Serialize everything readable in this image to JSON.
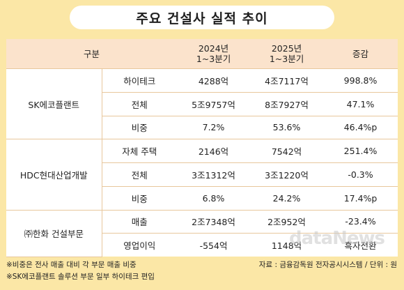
{
  "title": "주요 건설사 실적 추이",
  "table": {
    "headers": {
      "category": "구분",
      "col1_line1": "2024년",
      "col1_line2": "1~3분기",
      "col2_line1": "2025년",
      "col2_line2": "1~3분기",
      "col3": "증감"
    },
    "groups": [
      {
        "company": "SK에코플랜트",
        "rows": [
          {
            "item": "하이테크",
            "y2024": "4288억",
            "y2025": "4조7117억",
            "change": "998.8%"
          },
          {
            "item": "전체",
            "y2024": "5조9757억",
            "y2025": "8조7927억",
            "change": "47.1%"
          },
          {
            "item": "비중",
            "y2024": "7.2%",
            "y2025": "53.6%",
            "change": "46.4%p"
          }
        ]
      },
      {
        "company": "HDC현대산업개발",
        "rows": [
          {
            "item": "자체 주택",
            "y2024": "2146억",
            "y2025": "7542억",
            "change": "251.4%"
          },
          {
            "item": "전체",
            "y2024": "3조1312억",
            "y2025": "3조1220억",
            "change": "-0.3%"
          },
          {
            "item": "비중",
            "y2024": "6.8%",
            "y2025": "24.2%",
            "change": "17.4%p"
          }
        ]
      },
      {
        "company": "㈜한화 건설부문",
        "rows": [
          {
            "item": "매출",
            "y2024": "2조7348억",
            "y2025": "2조952억",
            "change": "-23.4%"
          },
          {
            "item": "영업이익",
            "y2024": "-554억",
            "y2025": "1148억",
            "change": "흑자전환"
          }
        ]
      }
    ]
  },
  "footnotes": {
    "note1": "※비중은 전사 매출 대비 각 부문 매출 비중",
    "note2": "※SK에코플랜트 솔루션 부문 일부 하이테크 편입",
    "source": "자료 : 금융감독원 전자공시시스템 / 단위 : 원"
  },
  "watermark": "dataNews",
  "colors": {
    "background": "#fbe7a6",
    "header_fill": "#fbe3cc",
    "grid_line": "#e8c79c"
  }
}
